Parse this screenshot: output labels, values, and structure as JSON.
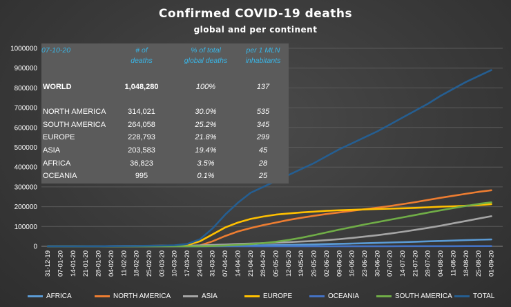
{
  "title": "Confirmed  COVID-19  deaths",
  "subtitle": "global and per continent",
  "table": {
    "date": "07-10-20",
    "col_deaths": [
      "# of",
      "deaths"
    ],
    "col_pct": [
      "% of total",
      "global deaths"
    ],
    "col_per_mln": [
      "per 1 MLN",
      "inhabitants"
    ],
    "rows": [
      {
        "name": "WORLD",
        "deaths": "1,048,280",
        "pct": "100%",
        "per_mln": "137"
      },
      {
        "name": "NORTH AMERICA",
        "deaths": "314,021",
        "pct": "30.0%",
        "per_mln": "535"
      },
      {
        "name": "SOUTH AMERICA",
        "deaths": "264,058",
        "pct": "25.2%",
        "per_mln": "345"
      },
      {
        "name": "EUROPE",
        "deaths": "228,793",
        "pct": "21.8%",
        "per_mln": "299"
      },
      {
        "name": "ASIA",
        "deaths": "203,583",
        "pct": "19.4%",
        "per_mln": "45"
      },
      {
        "name": "AFRICA",
        "deaths": "36,823",
        "pct": "3.5%",
        "per_mln": "28"
      },
      {
        "name": "OCEANIA",
        "deaths": "995",
        "pct": "0.1%",
        "per_mln": "25"
      }
    ]
  },
  "chart_data": {
    "type": "line",
    "title": "Confirmed  COVID-19  deaths",
    "subtitle": "global and per continent",
    "ylim": [
      0,
      1000000
    ],
    "yticks": [
      "0",
      "100000",
      "200000",
      "300000",
      "400000",
      "500000",
      "600000",
      "700000",
      "800000",
      "900000",
      "1000000"
    ],
    "x_start": "2019-12-31",
    "x_end": "2020-10-07",
    "x": [
      "31-12-19",
      "07-01-20",
      "14-01-20",
      "21-01-20",
      "28-01-20",
      "04-02-20",
      "11-02-20",
      "18-02-20",
      "25-02-20",
      "03-03-20",
      "10-03-20",
      "17-03-20",
      "24-03-20",
      "31-03-20",
      "07-04-20",
      "14-04-20",
      "21-04-20",
      "28-04-20",
      "05-05-20",
      "12-05-20",
      "19-05-20",
      "26-05-20",
      "02-06-20",
      "09-06-20",
      "16-06-20",
      "23-06-20",
      "30-06-20",
      "07-07-20",
      "14-07-20",
      "21-07-20",
      "28-07-20",
      "04-08-20",
      "11-08-20",
      "18-08-20",
      "25-08-20",
      "01-09-20"
    ],
    "xticks": [
      "31-12-19",
      "07-01-20",
      "14-01-20",
      "21-01-20",
      "28-01-20",
      "04-02-20",
      "11-02-20",
      "18-02-20",
      "25-02-20",
      "03-03-20",
      "10-03-20",
      "17-03-20",
      "24-03-20",
      "31-03-20",
      "07-04-20",
      "14-04-20",
      "21-04-20",
      "28-04-20",
      "05-05-20",
      "12-05-20",
      "19-05-20",
      "26-05-20",
      "02-06-20",
      "09-06-20",
      "16-06-20",
      "23-06-20",
      "30-06-20",
      "07-07-20",
      "14-07-20",
      "21-07-20",
      "28-07-20",
      "04-08-20",
      "11-08-20",
      "18-08-20",
      "25-08-20",
      "01-09-20"
    ],
    "grid": true,
    "legend": "bottom",
    "series": [
      {
        "name": "AFRICA",
        "color": "#5b9bd5",
        "values": [
          0,
          0,
          0,
          0,
          0,
          0,
          0,
          0,
          0,
          0,
          10,
          50,
          200,
          1000,
          2000,
          3000,
          4000,
          5000,
          6000,
          7000,
          8000,
          9500,
          11000,
          12500,
          14000,
          15500,
          17000,
          19000,
          21000,
          23000,
          25000,
          27000,
          29000,
          31000,
          33000,
          34500
        ]
      },
      {
        "name": "NORTH AMERICA",
        "color": "#ed7d31",
        "values": [
          0,
          0,
          0,
          0,
          0,
          0,
          0,
          0,
          0,
          0,
          0,
          0,
          4000,
          25000,
          52000,
          75000,
          92000,
          107000,
          120000,
          133000,
          144000,
          154000,
          163000,
          171000,
          179000,
          187000,
          195000,
          203000,
          213000,
          223000,
          234000,
          245000,
          255000,
          265000,
          275000,
          283000
        ]
      },
      {
        "name": "ASIA",
        "color": "#a5a5a5",
        "values": [
          0,
          0,
          0,
          100,
          300,
          900,
          1500,
          2100,
          2600,
          3000,
          3300,
          3600,
          4500,
          6500,
          9000,
          12000,
          14000,
          16000,
          18500,
          21000,
          24000,
          27000,
          31000,
          36000,
          42000,
          49000,
          56000,
          64000,
          73000,
          83000,
          93000,
          104000,
          116000,
          128000,
          140000,
          152000
        ]
      },
      {
        "name": "EUROPE",
        "color": "#ffc000",
        "values": [
          0,
          0,
          0,
          0,
          0,
          0,
          0,
          0,
          0,
          30,
          300,
          6000,
          25000,
          60000,
          95000,
          120000,
          138000,
          150000,
          160000,
          166000,
          171000,
          175000,
          179000,
          182000,
          184000,
          186000,
          188000,
          190000,
          192000,
          194000,
          197000,
          200000,
          202000,
          205000,
          208000,
          213000
        ]
      },
      {
        "name": "OCEANIA",
        "color": "#4472c4",
        "values": [
          0,
          0,
          0,
          0,
          0,
          0,
          0,
          0,
          0,
          0,
          0,
          10,
          40,
          100,
          150,
          200,
          210,
          220,
          230,
          235,
          240,
          240,
          245,
          250,
          260,
          300,
          400,
          500,
          550,
          600,
          700,
          800,
          850,
          900,
          950,
          995
        ]
      },
      {
        "name": "SOUTH AMERICA",
        "color": "#70ad47",
        "values": [
          0,
          0,
          0,
          0,
          0,
          0,
          0,
          0,
          0,
          0,
          10,
          100,
          300,
          1500,
          4000,
          7000,
          11000,
          16000,
          23000,
          32000,
          43000,
          56000,
          70000,
          84000,
          97000,
          110000,
          122000,
          134000,
          146000,
          158000,
          170000,
          182000,
          193000,
          204000,
          214000,
          222000
        ]
      },
      {
        "name": "TOTAL",
        "color": "#255e91",
        "values": [
          0,
          0,
          0,
          200,
          300,
          900,
          1500,
          2100,
          2700,
          3500,
          5000,
          12000,
          35000,
          90000,
          160000,
          220000,
          270000,
          300000,
          330000,
          360000,
          390000,
          420000,
          455000,
          490000,
          520000,
          550000,
          580000,
          615000,
          650000,
          685000,
          720000,
          760000,
          795000,
          830000,
          860000,
          890000
        ]
      }
    ]
  }
}
